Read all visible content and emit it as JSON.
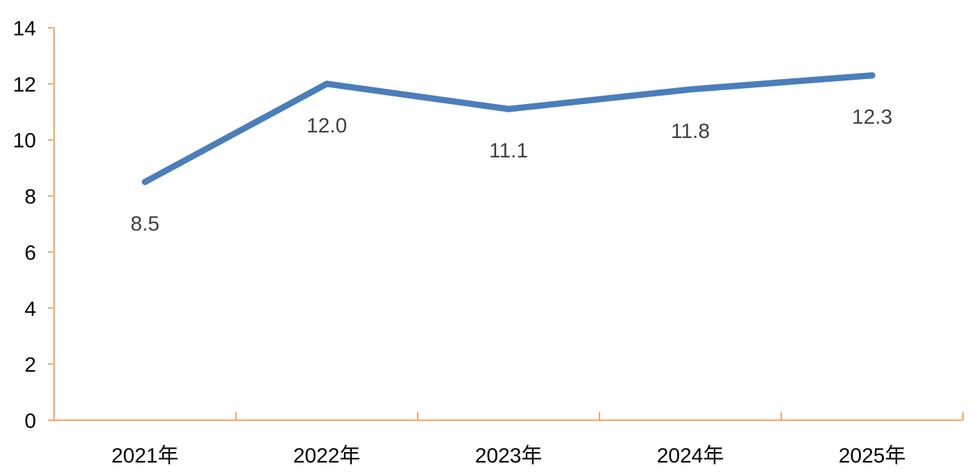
{
  "chart_data": {
    "type": "line",
    "title": "",
    "xlabel": "",
    "ylabel": "",
    "categories": [
      "2021年",
      "2022年",
      "2023年",
      "2024年",
      "2025年"
    ],
    "series": [
      {
        "values": [
          8.5,
          12.0,
          11.1,
          11.8,
          12.3
        ]
      }
    ],
    "data_labels": [
      "8.5",
      "12.0",
      "11.1",
      "11.8",
      "12.3"
    ],
    "ylim": [
      0,
      14
    ],
    "y_ticks": [
      "0",
      "2",
      "4",
      "6",
      "8",
      "10",
      "12",
      "14"
    ],
    "grid": false,
    "legend": "none",
    "colors": {
      "line": "#4a7ebb",
      "axis": "#f4a460",
      "tick_text": "#000000",
      "label_text": "#404040"
    }
  }
}
